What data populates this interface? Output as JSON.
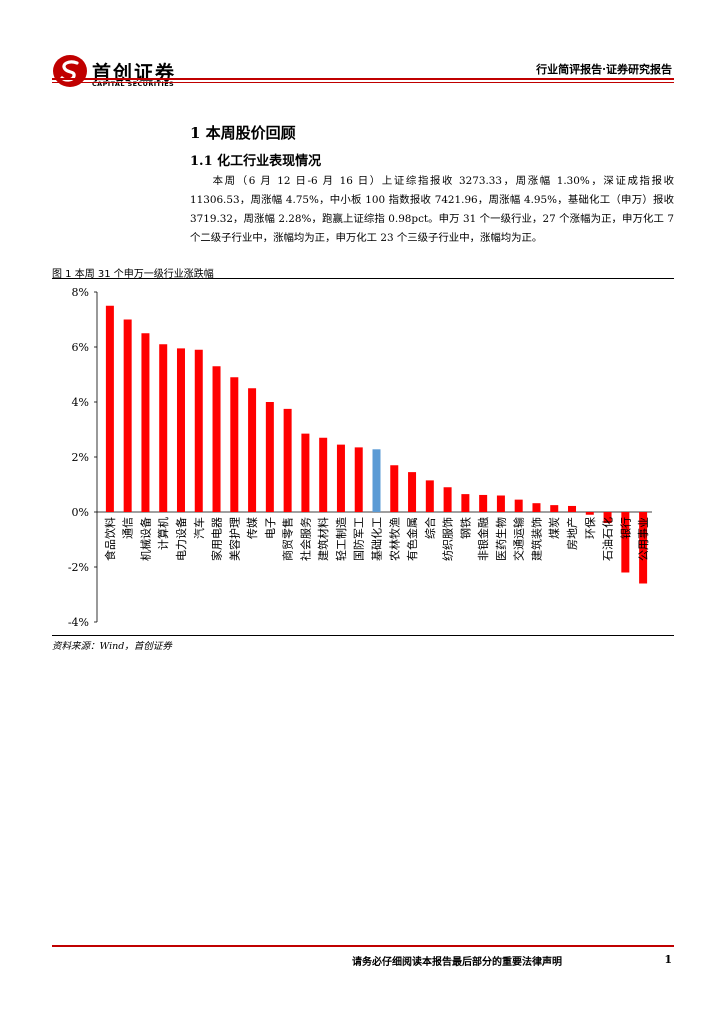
{
  "header": {
    "logo_cn": "首创证券",
    "logo_en": "CAPITAL SECURITIES",
    "report_type": "行业简评报告·证券研究报告",
    "brand_color": "#c00000"
  },
  "section": {
    "h1": "1 本周股价回顾",
    "h2": "1.1 化工行业表现情况",
    "paragraph": "本周（6 月 12 日-6 月 16 日）上证综指报收 3273.33，周涨幅 1.30%，深证成指报收 11306.53，周涨幅 4.75%，中小板 100 指数报收 7421.96，周涨幅 4.95%，基础化工（申万）报收 3719.32，周涨幅 2.28%，跑赢上证综指 0.98pct。申万 31 个一级行业，27 个涨幅为正，申万化工 7 个二级子行业中，涨幅均为正，申万化工 23 个三级子行业中，涨幅均为正。"
  },
  "figure": {
    "title": "图 1 本周 31 个申万一级行业涨跌幅",
    "source": "资料来源：Wind，首创证券"
  },
  "chart_data": {
    "type": "bar",
    "categories": [
      "食品饮料",
      "通信",
      "机械设备",
      "计算机",
      "电力设备",
      "汽车",
      "家用电器",
      "美容护理",
      "传媒",
      "电子",
      "商贸零售",
      "社会服务",
      "建筑材料",
      "轻工制造",
      "国防军工",
      "基础化工",
      "农林牧渔",
      "有色金属",
      "综合",
      "纺织服饰",
      "钢铁",
      "非银金融",
      "医药生物",
      "交通运输",
      "建筑装饰",
      "煤炭",
      "房地产",
      "环保",
      "石油石化",
      "银行",
      "公用事业"
    ],
    "values": [
      7.5,
      7.0,
      6.5,
      6.1,
      5.95,
      5.9,
      5.3,
      4.9,
      4.5,
      4.0,
      3.75,
      2.85,
      2.7,
      2.45,
      2.35,
      2.28,
      1.7,
      1.45,
      1.15,
      0.9,
      0.65,
      0.62,
      0.6,
      0.45,
      0.32,
      0.25,
      0.22,
      -0.1,
      -0.4,
      -2.2,
      -2.6
    ],
    "highlight_index": 15,
    "y_ticks": [
      "8%",
      "6%",
      "4%",
      "2%",
      "0%",
      "-2%",
      "-4%"
    ],
    "y_tick_values": [
      8,
      6,
      4,
      2,
      0,
      -2,
      -4
    ],
    "ylim": [
      -4,
      8
    ],
    "bar_color": "#ff0000",
    "highlight_color": "#5b9bd5",
    "grid": false
  },
  "footer": {
    "disclaimer": "请务必仔细阅读本报告最后部分的重要法律声明",
    "page": "1"
  }
}
